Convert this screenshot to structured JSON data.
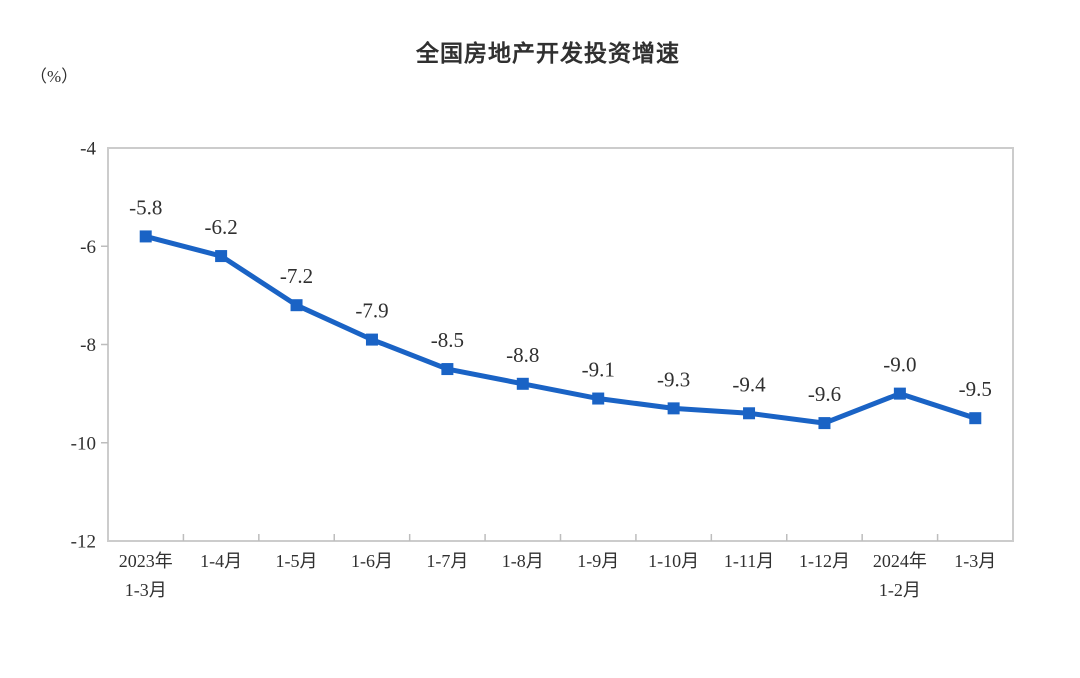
{
  "page": {
    "background_color": "#FFFFFF",
    "text_color": "#303030",
    "axis_color": "#CCCCCC",
    "tick_color": "#BDBDBD"
  },
  "chart_data": {
    "type": "line",
    "title": "全国房地产开发投资增速",
    "y_axis_unit": "（%）",
    "categories": [
      "2023年\n1-3月",
      "1-4月",
      "1-5月",
      "1-6月",
      "1-7月",
      "1-8月",
      "1-9月",
      "1-10月",
      "1-11月",
      "1-12月",
      "2024年\n1-2月",
      "1-3月"
    ],
    "values": [
      -5.8,
      -6.2,
      -7.2,
      -7.9,
      -8.5,
      -8.8,
      -9.1,
      -9.3,
      -9.4,
      -9.6,
      -9.0,
      -9.5
    ],
    "data_labels": [
      "-5.8",
      "-6.2",
      "-7.2",
      "-7.9",
      "-8.5",
      "-8.8",
      "-9.1",
      "-9.3",
      "-9.4",
      "-9.6",
      "-9.0",
      "-9.5"
    ],
    "xlabel": "",
    "ylabel": "",
    "ylim": [
      -12,
      -4
    ],
    "yticks": [
      -4,
      -6,
      -8,
      -10,
      -12
    ],
    "grid": false,
    "legend": "none",
    "line_color": "#1A63C5",
    "marker": "square"
  }
}
